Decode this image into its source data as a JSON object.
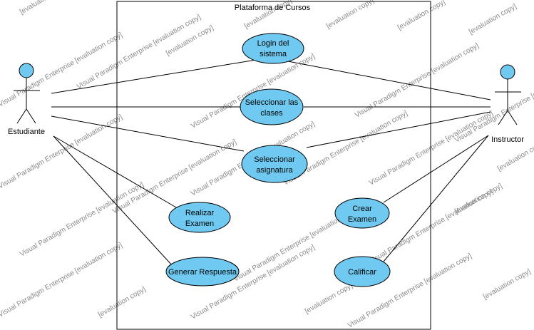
{
  "diagram": {
    "system_title": "Plataforma de Cursos",
    "actors": {
      "student": "Estudiante",
      "instructor": "Instructor"
    },
    "use_cases": {
      "login_line1": "Login del",
      "login_line2": "sistema",
      "select_classes_line1": "Seleccionar las",
      "select_classes_line2": "clases",
      "select_subject_line1": "Seleccionar",
      "select_subject_line2": "asignatura",
      "take_exam_line1": "Realizar",
      "take_exam_line2": "Examen",
      "create_exam_line1": "Crear",
      "create_exam_line2": "Examen",
      "generate_answer": "Generar Respuesta",
      "grade": "Calificar"
    },
    "watermark_lines": {
      "vp": "Visual Paradigm Enterprise [evaluation copy]",
      "eval": "[evaluation copy]",
      "vp_short": "Visual Paradigm Enterprise"
    },
    "colors": {
      "use_case_fill": "#6fc9f0",
      "actor_head_fill": "#6fc9f0",
      "stroke": "#000000",
      "watermark": "#8a8a8a"
    }
  }
}
